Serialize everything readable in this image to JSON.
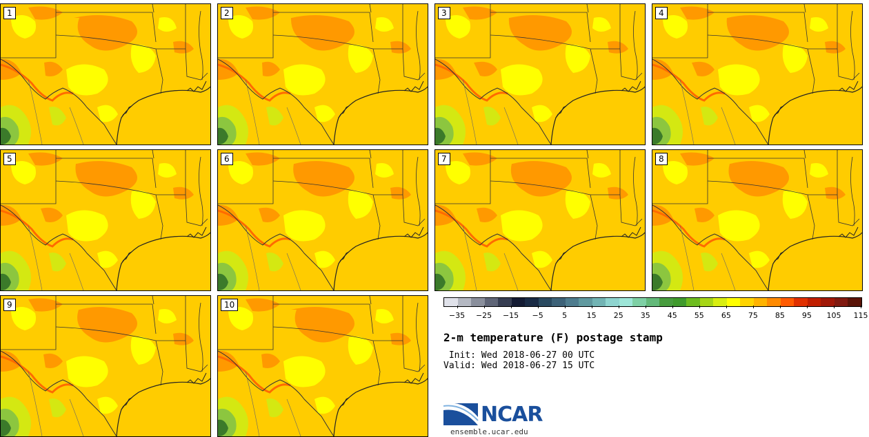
{
  "figure": {
    "title": "2-m temperature (F) postage stamp",
    "init": " Init: Wed 2018-06-27 00 UTC",
    "valid": "Valid: Wed 2018-06-27 15 UTC",
    "site": "ensemble.ucar.edu",
    "logo_text": "NCAR"
  },
  "panels": [
    {
      "label": "1"
    },
    {
      "label": "2"
    },
    {
      "label": "3"
    },
    {
      "label": "4"
    },
    {
      "label": "5"
    },
    {
      "label": "6"
    },
    {
      "label": "7"
    },
    {
      "label": "8"
    },
    {
      "label": "9"
    },
    {
      "label": "10"
    }
  ],
  "colorbar": {
    "colors": [
      "#e0e2ea",
      "#b4b8c2",
      "#8a8f9c",
      "#5f6577",
      "#373e52",
      "#141b33",
      "#1a2b45",
      "#2a4a60",
      "#3d6278",
      "#4e7c8e",
      "#60999f",
      "#72b4b4",
      "#8ed4cf",
      "#9de6d8",
      "#7ed0a5",
      "#63b97a",
      "#489c3e",
      "#3f9a2c",
      "#6dbc1f",
      "#a6d616",
      "#d8ee10",
      "#ffff00",
      "#ffd400",
      "#ffb300",
      "#ff8a00",
      "#ff5a00",
      "#e03000",
      "#c01e00",
      "#a01808",
      "#801a10",
      "#5a1408"
    ],
    "tick_labels": [
      "−35",
      "−25",
      "−15",
      "−5",
      "5",
      "15",
      "25",
      "35",
      "45",
      "55",
      "65",
      "75",
      "85",
      "95",
      "105",
      "115"
    ]
  },
  "map": {
    "base_color": "#ffcc00",
    "colors": {
      "hot": "#ff9900",
      "hotter": "#ff6a00",
      "cool": "#ffff00",
      "cooler": "#d4e812",
      "green": "#8cc63f",
      "darkgreen": "#3b7a2a"
    }
  }
}
